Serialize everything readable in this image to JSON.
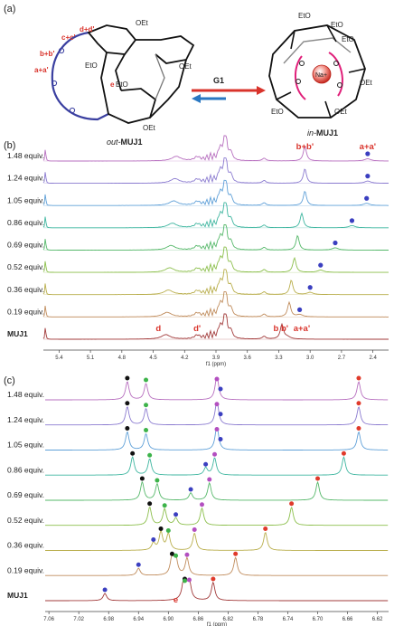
{
  "panel_labels": [
    "(a)",
    "(b)",
    "(c)"
  ],
  "scheme": {
    "left_name_prefix": "out-",
    "left_name_bold": "MUJ1",
    "right_name_prefix": "in-",
    "right_name_bold": "MUJ1",
    "arrow_label": "G1",
    "cation_label": "Na+",
    "left_annotations": [
      "d+d'",
      "c+c'",
      "b+b'",
      "a+a'",
      "e"
    ],
    "left_groups": [
      "OEt",
      "OEt",
      "EtO",
      "EtO",
      "OEt"
    ],
    "right_groups": [
      "EtO",
      "EtO",
      "EtO",
      "OEt",
      "EtO",
      "OEt"
    ],
    "colors": {
      "arrow_forward": "#d9332b",
      "arrow_back": "#2a78c2",
      "chain": "#3a3fa0",
      "cation": "#d9332b",
      "crown": "#e0207a"
    }
  },
  "chart_data": [
    {
      "type": "line",
      "title": "",
      "xlabel": "f1 (ppm)",
      "xlim": [
        5.55,
        2.25
      ],
      "xticks": [
        5.4,
        5.1,
        4.8,
        4.5,
        4.2,
        3.9,
        3.6,
        3.3,
        3.0,
        2.7,
        2.4
      ],
      "xtick_labels": [
        "5.4",
        "5.1",
        "4.8",
        "4.5",
        "4.2",
        "3.9",
        "3.6",
        "3.3",
        "3.0",
        "2.7",
        "2.4"
      ],
      "series": [
        {
          "name": "1.48 equiv.",
          "color": "#b76fbf",
          "peak_bb": 3.05,
          "peak_aa": 2.45
        },
        {
          "name": "1.24 equiv.",
          "color": "#8b7bd0",
          "peak_bb": 3.05,
          "peak_aa": 2.45
        },
        {
          "name": "1.05 equiv.",
          "color": "#5fa0d8",
          "peak_bb": 3.05,
          "peak_aa": 2.46
        },
        {
          "name": "0.86 equiv.",
          "color": "#3fb6a0",
          "peak_bb": 3.08,
          "peak_aa": 2.6
        },
        {
          "name": "0.69 equiv.",
          "color": "#56b86a",
          "peak_bb": 3.12,
          "peak_aa": 2.76
        },
        {
          "name": "0.52 equiv.",
          "color": "#8cbf4c",
          "peak_bb": 3.15,
          "peak_aa": 2.9
        },
        {
          "name": "0.36 equiv.",
          "color": "#b9ae4c",
          "peak_bb": 3.18,
          "peak_aa": 3.0
        },
        {
          "name": "0.19 equiv.",
          "color": "#c08c5c",
          "peak_bb": 3.2,
          "peak_aa": 3.1
        },
        {
          "name": "MUJ1",
          "color": "#a23b3b",
          "peak_bb": 3.27,
          "peak_aa": 3.22
        }
      ],
      "annotations": [
        {
          "text": "b+b'",
          "x": 3.05
        },
        {
          "text": "a+a'",
          "x": 2.45
        },
        {
          "text": "d",
          "x": 4.45
        },
        {
          "text": "d'",
          "x": 4.08
        },
        {
          "text": "b b'",
          "x": 3.28
        },
        {
          "text": "a+a'",
          "x": 3.08
        }
      ]
    },
    {
      "type": "line",
      "title": "",
      "xlabel": "f1 (ppm)",
      "xlim": [
        7.065,
        6.605
      ],
      "xticks": [
        7.06,
        7.02,
        6.98,
        6.94,
        6.9,
        6.86,
        6.82,
        6.78,
        6.74,
        6.7,
        6.66,
        6.62
      ],
      "xtick_labels": [
        "7.06",
        "7.02",
        "6.98",
        "6.94",
        "6.90",
        "6.86",
        "6.82",
        "6.78",
        "6.74",
        "6.70",
        "6.66",
        "6.62"
      ],
      "series": [
        {
          "name": "1.48 equiv.",
          "color": "#b76fbf",
          "black": 6.955,
          "green": 6.93,
          "blue": 6.835,
          "purple": 6.835,
          "red": 6.645
        },
        {
          "name": "1.24 equiv.",
          "color": "#8b7bd0",
          "black": 6.955,
          "green": 6.93,
          "blue": 6.835,
          "purple": 6.835,
          "red": 6.645
        },
        {
          "name": "1.05 equiv.",
          "color": "#5fa0d8",
          "black": 6.955,
          "green": 6.93,
          "blue": 6.835,
          "purple": 6.835,
          "red": 6.645
        },
        {
          "name": "0.86 equiv.",
          "color": "#3fb6a0",
          "black": 6.948,
          "green": 6.925,
          "blue": 6.85,
          "purple": 6.838,
          "red": 6.665
        },
        {
          "name": "0.69 equiv.",
          "color": "#56b86a",
          "black": 6.935,
          "green": 6.915,
          "blue": 6.87,
          "purple": 6.845,
          "red": 6.7
        },
        {
          "name": "0.52 equiv.",
          "color": "#8cbf4c",
          "black": 6.925,
          "green": 6.905,
          "blue": 6.89,
          "purple": 6.855,
          "red": 6.735
        },
        {
          "name": "0.36 equiv.",
          "color": "#b9ae4c",
          "black": 6.91,
          "green": 6.9,
          "blue": 6.92,
          "purple": 6.865,
          "red": 6.77
        },
        {
          "name": "0.19 equiv.",
          "color": "#c08c5c",
          "black": 6.895,
          "green": 6.89,
          "blue": 6.94,
          "purple": 6.875,
          "red": 6.81
        },
        {
          "name": "MUJ1",
          "color": "#a23b3b",
          "black": 6.878,
          "green": 6.878,
          "blue": 6.985,
          "purple": 6.872,
          "red": 6.84
        }
      ],
      "annotations": [
        {
          "text": "e",
          "x": 6.89
        }
      ]
    }
  ]
}
